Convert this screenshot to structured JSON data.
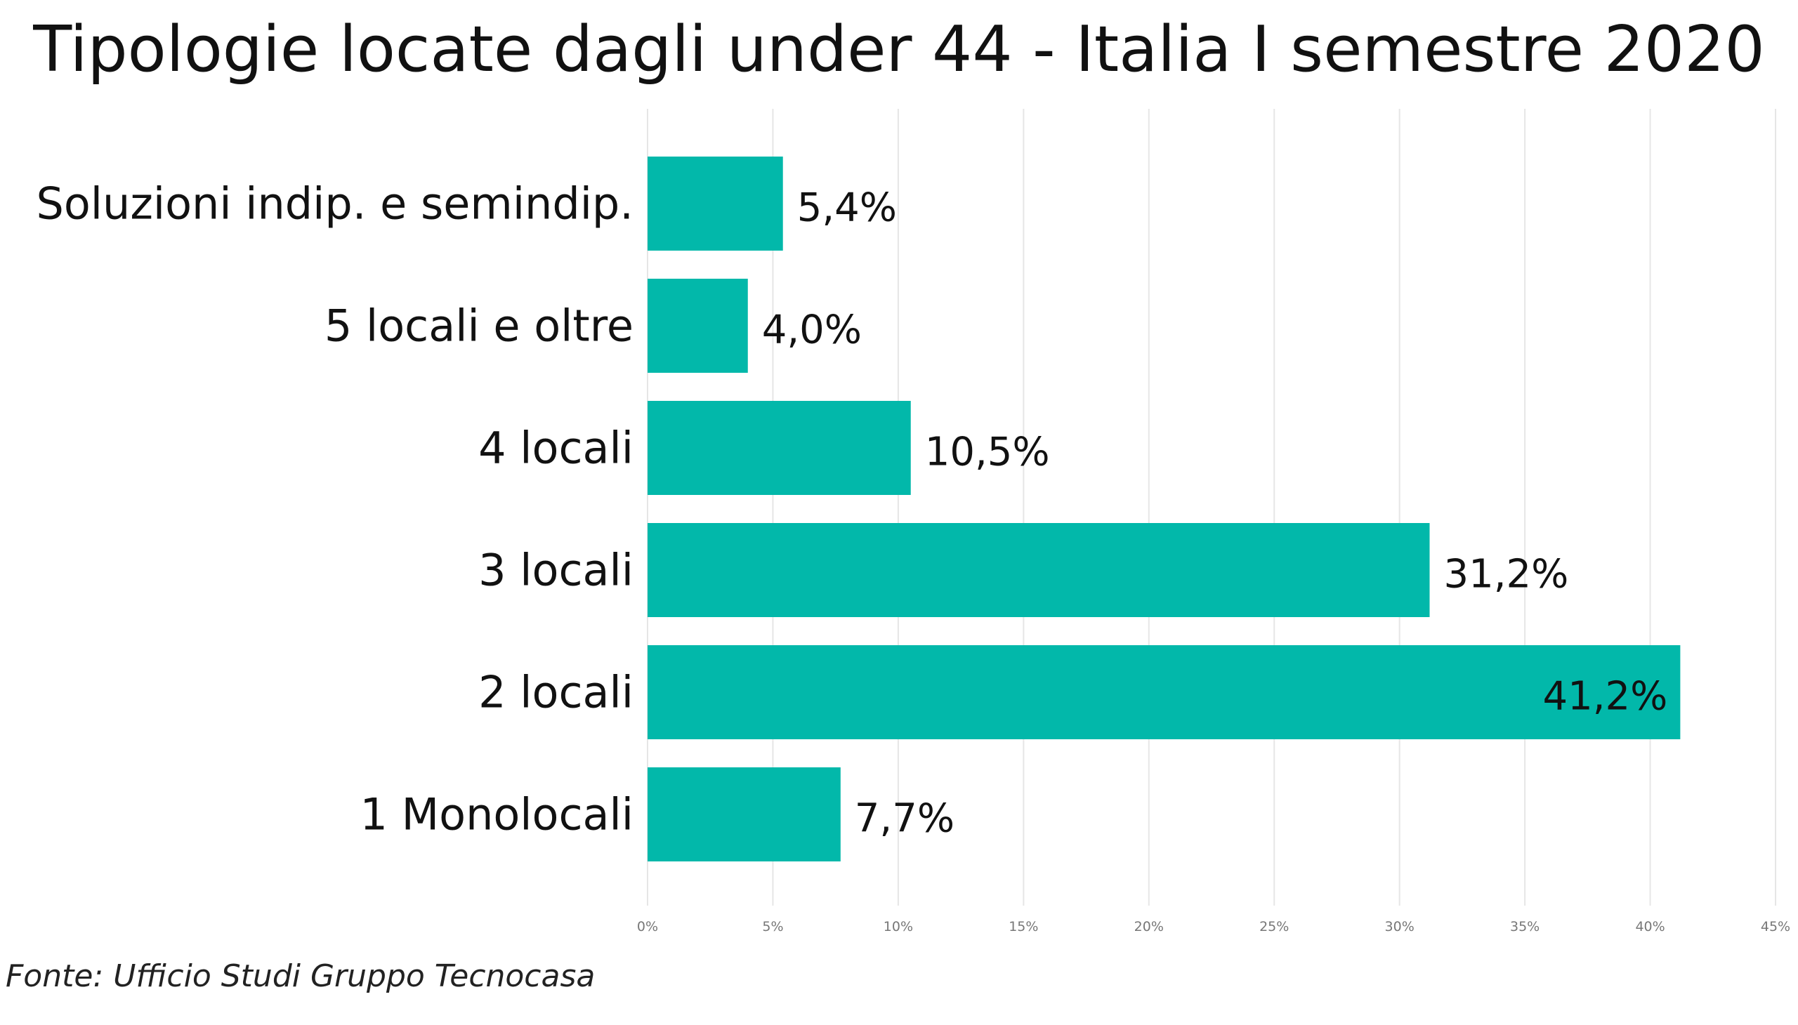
{
  "chart_data": {
    "type": "bar",
    "orientation": "horizontal",
    "title": "Tipologie locate dagli under 44 - Italia I semestre 2020",
    "categories": [
      "Soluzioni indip. e semindip.",
      "5 locali e oltre",
      "4 locali",
      "3 locali",
      "2 locali",
      "1 Monolocali"
    ],
    "values": [
      5.4,
      4.0,
      10.5,
      31.2,
      41.2,
      7.7
    ],
    "data_labels": [
      "5,4%",
      "4,0%",
      "10,5%",
      "31,2%",
      "41,2%",
      "7,7%"
    ],
    "xlim": [
      0,
      45
    ],
    "xticks": [
      0,
      5,
      10,
      15,
      20,
      25,
      30,
      35,
      40,
      45
    ],
    "xtick_labels": [
      "0%",
      "5%",
      "10%",
      "15%",
      "20%",
      "25%",
      "30%",
      "35%",
      "40%",
      "45%"
    ],
    "xlabel": "",
    "ylabel": "",
    "grid": "vertical",
    "legend": "none",
    "bar_color": "#02B8AA"
  },
  "source": "Fonte: Ufficio Studi Gruppo Tecnocasa"
}
